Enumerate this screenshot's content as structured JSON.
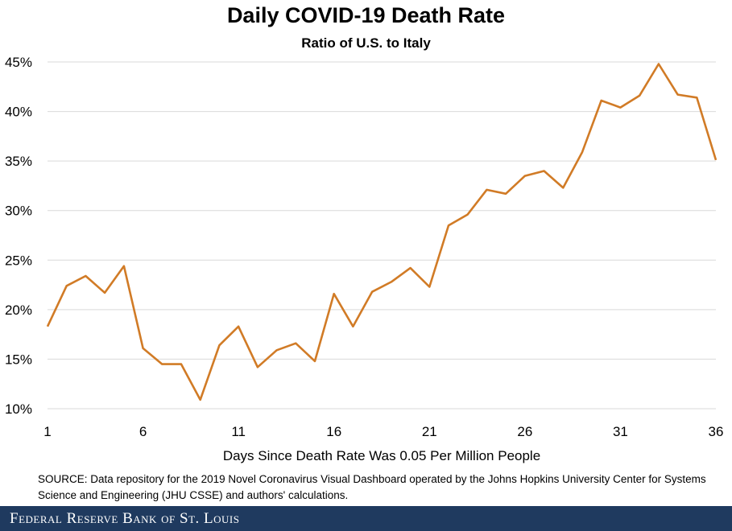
{
  "title": "Daily COVID-19 Death Rate",
  "subtitle": "Ratio of U.S. to Italy",
  "source": "SOURCE: Data repository for the 2019 Novel Coronavirus Visual Dashboard operated by the Johns Hopkins University Center for Systems Science and Engineering (JHU CSSE) and authors' calculations.",
  "footer": "Federal Reserve Bank of St. Louis",
  "colors": {
    "line": "#d17b26",
    "grid": "#d9d9d9",
    "footer_bg": "#1f3a5f"
  },
  "chart_data": {
    "type": "line",
    "title": "Daily COVID-19 Death Rate",
    "subtitle": "Ratio of U.S. to Italy",
    "xlabel": "Days Since Death Rate Was 0.05 Per Million People",
    "ylabel": "",
    "xlim": [
      1,
      36
    ],
    "ylim": [
      10,
      45
    ],
    "x_ticks": [
      1,
      6,
      11,
      16,
      21,
      26,
      31,
      36
    ],
    "y_ticks": [
      10,
      15,
      20,
      25,
      30,
      35,
      40,
      45
    ],
    "y_tick_labels": [
      "10%",
      "15%",
      "20%",
      "25%",
      "30%",
      "35%",
      "40%",
      "45%"
    ],
    "grid": "horizontal",
    "legend": "none",
    "series": [
      {
        "x": [
          1,
          2,
          3,
          4,
          5,
          6,
          7,
          8,
          9,
          10,
          11,
          12,
          13,
          14,
          15,
          16,
          17,
          18,
          19,
          20,
          21,
          22,
          23,
          24,
          25,
          26,
          27,
          28,
          29,
          30,
          31,
          32,
          33,
          34,
          35,
          36
        ],
        "values": [
          18.3,
          22.4,
          23.4,
          21.7,
          24.4,
          16.1,
          14.5,
          14.5,
          10.9,
          16.4,
          18.3,
          14.2,
          15.9,
          16.6,
          14.8,
          21.6,
          18.3,
          21.8,
          22.8,
          24.2,
          22.3,
          28.5,
          29.6,
          32.1,
          31.7,
          33.5,
          34.0,
          32.3,
          35.9,
          41.1,
          40.4,
          41.6,
          44.8,
          41.7,
          41.4,
          35.1
        ]
      }
    ]
  }
}
